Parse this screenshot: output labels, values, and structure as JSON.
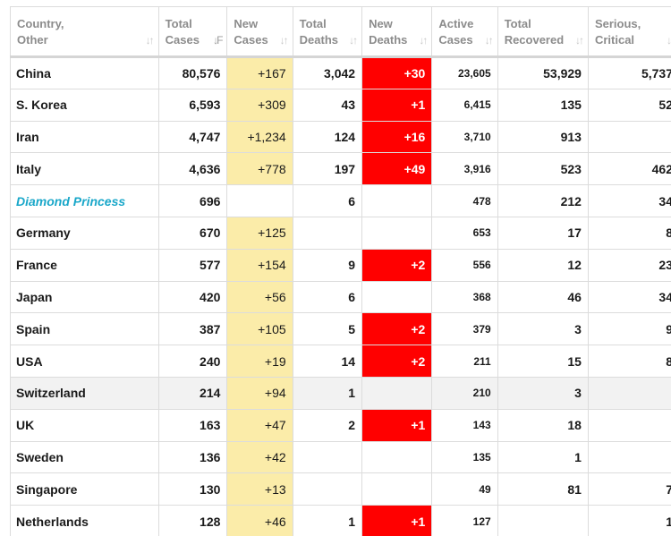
{
  "headers": [
    {
      "line1": "Country,",
      "line2": "Other"
    },
    {
      "line1": "Total",
      "line2": "Cases"
    },
    {
      "line1": "New",
      "line2": "Cases"
    },
    {
      "line1": "Total",
      "line2": "Deaths"
    },
    {
      "line1": "New",
      "line2": "Deaths"
    },
    {
      "line1": "Active",
      "line2": "Cases"
    },
    {
      "line1": "Total",
      "line2": "Recovered"
    },
    {
      "line1": "Serious,",
      "line2": "Critical"
    }
  ],
  "colors": {
    "new_cases_highlight": "#fbeca9",
    "new_deaths_highlight": "#ff0000",
    "link": "#19a7c9"
  },
  "rows": [
    {
      "country": "China",
      "total_cases": "80,576",
      "new_cases": "+167",
      "total_deaths": "3,042",
      "new_deaths": "+30",
      "active_cases": "23,605",
      "total_recovered": "53,929",
      "serious_critical": "5,737"
    },
    {
      "country": "S. Korea",
      "total_cases": "6,593",
      "new_cases": "+309",
      "total_deaths": "43",
      "new_deaths": "+1",
      "active_cases": "6,415",
      "total_recovered": "135",
      "serious_critical": "52"
    },
    {
      "country": "Iran",
      "total_cases": "4,747",
      "new_cases": "+1,234",
      "total_deaths": "124",
      "new_deaths": "+16",
      "active_cases": "3,710",
      "total_recovered": "913",
      "serious_critical": ""
    },
    {
      "country": "Italy",
      "total_cases": "4,636",
      "new_cases": "+778",
      "total_deaths": "197",
      "new_deaths": "+49",
      "active_cases": "3,916",
      "total_recovered": "523",
      "serious_critical": "462"
    },
    {
      "country": "Diamond Princess",
      "is_link": true,
      "total_cases": "696",
      "new_cases": "",
      "total_deaths": "6",
      "new_deaths": "",
      "active_cases": "478",
      "total_recovered": "212",
      "serious_critical": "34"
    },
    {
      "country": "Germany",
      "total_cases": "670",
      "new_cases": "+125",
      "total_deaths": "",
      "new_deaths": "",
      "active_cases": "653",
      "total_recovered": "17",
      "serious_critical": "8"
    },
    {
      "country": "France",
      "total_cases": "577",
      "new_cases": "+154",
      "total_deaths": "9",
      "new_deaths": "+2",
      "active_cases": "556",
      "total_recovered": "12",
      "serious_critical": "23"
    },
    {
      "country": "Japan",
      "total_cases": "420",
      "new_cases": "+56",
      "total_deaths": "6",
      "new_deaths": "",
      "active_cases": "368",
      "total_recovered": "46",
      "serious_critical": "34"
    },
    {
      "country": "Spain",
      "total_cases": "387",
      "new_cases": "+105",
      "total_deaths": "5",
      "new_deaths": "+2",
      "active_cases": "379",
      "total_recovered": "3",
      "serious_critical": "9"
    },
    {
      "country": "USA",
      "total_cases": "240",
      "new_cases": "+19",
      "total_deaths": "14",
      "new_deaths": "+2",
      "active_cases": "211",
      "total_recovered": "15",
      "serious_critical": "8"
    },
    {
      "country": "Switzerland",
      "shaded": true,
      "total_cases": "214",
      "new_cases": "+94",
      "total_deaths": "1",
      "new_deaths": "",
      "active_cases": "210",
      "total_recovered": "3",
      "serious_critical": ""
    },
    {
      "country": "UK",
      "total_cases": "163",
      "new_cases": "+47",
      "total_deaths": "2",
      "new_deaths": "+1",
      "active_cases": "143",
      "total_recovered": "18",
      "serious_critical": ""
    },
    {
      "country": "Sweden",
      "total_cases": "136",
      "new_cases": "+42",
      "total_deaths": "",
      "new_deaths": "",
      "active_cases": "135",
      "total_recovered": "1",
      "serious_critical": ""
    },
    {
      "country": "Singapore",
      "total_cases": "130",
      "new_cases": "+13",
      "total_deaths": "",
      "new_deaths": "",
      "active_cases": "49",
      "total_recovered": "81",
      "serious_critical": "7"
    },
    {
      "country": "Netherlands",
      "total_cases": "128",
      "new_cases": "+46",
      "total_deaths": "1",
      "new_deaths": "+1",
      "active_cases": "127",
      "total_recovered": "",
      "serious_critical": "1"
    }
  ]
}
